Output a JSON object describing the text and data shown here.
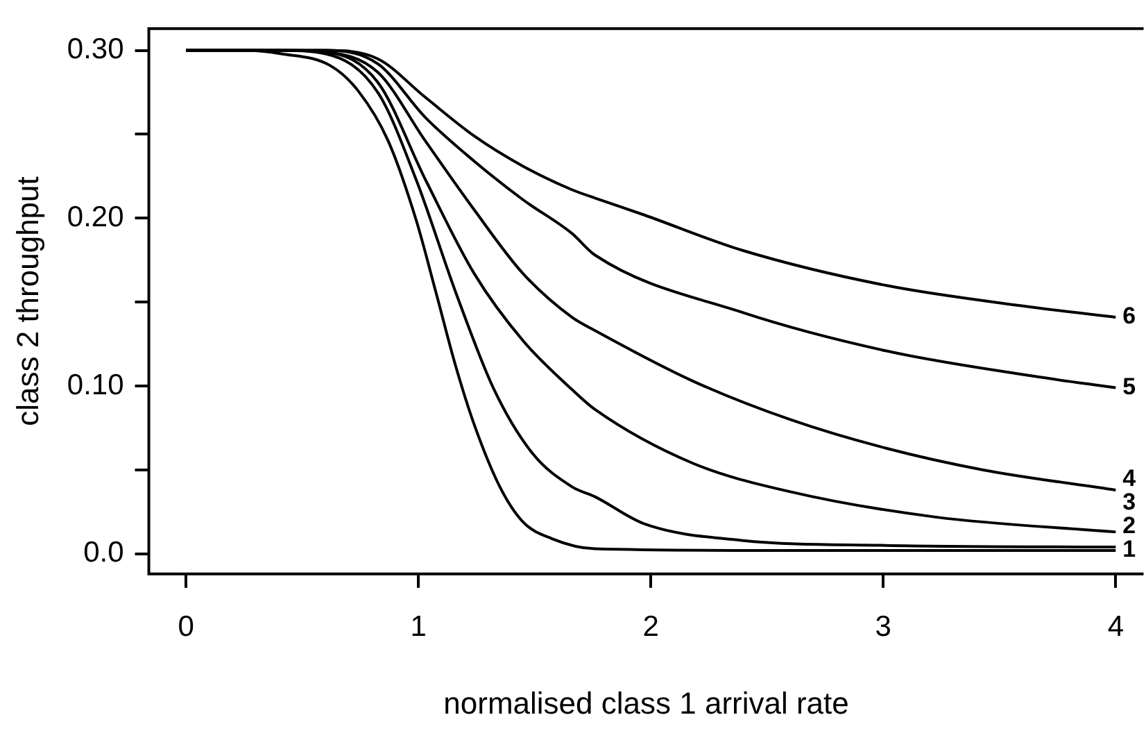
{
  "chart_data": {
    "type": "line",
    "xlabel": "normalised class 1 arrival rate",
    "ylabel": "class 2 throughput",
    "xlim": [
      -0.16,
      4.12
    ],
    "ylim": [
      -0.012,
      0.313
    ],
    "xticks": [
      0,
      1,
      2,
      3,
      4
    ],
    "yticks": [
      {
        "value": 0,
        "label": "0.0"
      },
      {
        "value": 0.05,
        "label": null
      },
      {
        "value": 0.1,
        "label": "0.10"
      },
      {
        "value": 0.15,
        "label": null
      },
      {
        "value": 0.2,
        "label": "0.20"
      },
      {
        "value": 0.25,
        "label": null
      },
      {
        "value": 0.3,
        "label": "0.30"
      }
    ],
    "grid": false,
    "legend": false,
    "marker": "none",
    "line_style": "solid",
    "series": [
      {
        "name": "1",
        "color": "#000000",
        "x": [
          0,
          0.25,
          0.41,
          0.62,
          0.74,
          0.87,
          0.99,
          1.075,
          1.16,
          1.24,
          1.35,
          1.45,
          1.575,
          1.76,
          2.5,
          4
        ],
        "values": [
          0.3,
          0.3,
          0.298,
          0.291,
          0.276,
          0.246,
          0.199,
          0.156,
          0.112,
          0.077,
          0.04,
          0.019,
          0.009,
          0.003,
          0.002,
          0.002
        ]
      },
      {
        "name": "2",
        "color": "#000000",
        "x": [
          0,
          0.4,
          0.6,
          0.825,
          0.99,
          1.16,
          1.325,
          1.49,
          1.66,
          1.76,
          1.97,
          2.39,
          3.01,
          4
        ],
        "values": [
          0.3,
          0.3,
          0.298,
          0.275,
          0.223,
          0.156,
          0.098,
          0.06,
          0.04,
          0.034,
          0.018,
          0.008,
          0.005,
          0.004
        ]
      },
      {
        "name": "3",
        "color": "#000000",
        "x": [
          0,
          0.4,
          0.6,
          0.825,
          1.03,
          1.24,
          1.45,
          1.66,
          1.76,
          2.18,
          2.6,
          3.22,
          4
        ],
        "values": [
          0.3,
          0.3,
          0.299,
          0.281,
          0.223,
          0.167,
          0.127,
          0.098,
          0.086,
          0.054,
          0.037,
          0.022,
          0.013
        ]
      },
      {
        "name": "4",
        "color": "#000000",
        "x": [
          0,
          0.4,
          0.6,
          0.825,
          1.03,
          1.24,
          1.45,
          1.66,
          1.76,
          2.18,
          2.6,
          3.01,
          3.43,
          4
        ],
        "values": [
          0.3,
          0.3,
          0.299,
          0.287,
          0.246,
          0.205,
          0.167,
          0.141,
          0.133,
          0.103,
          0.08,
          0.063,
          0.05,
          0.038
        ]
      },
      {
        "name": "5",
        "color": "#000000",
        "x": [
          0,
          0.4,
          0.6,
          0.825,
          1.03,
          1.24,
          1.45,
          1.66,
          1.76,
          2.39,
          3.01,
          3.64,
          4
        ],
        "values": [
          0.3,
          0.3,
          0.3,
          0.292,
          0.26,
          0.234,
          0.211,
          0.191,
          0.178,
          0.144,
          0.121,
          0.106,
          0.099
        ]
      },
      {
        "name": "6",
        "color": "#000000",
        "x": [
          0,
          0.4,
          0.6,
          0.825,
          1.03,
          1.24,
          1.45,
          1.66,
          1.76,
          1.97,
          2.39,
          3.01,
          3.64,
          4
        ],
        "values": [
          0.3,
          0.3,
          0.3,
          0.295,
          0.272,
          0.249,
          0.231,
          0.217,
          0.212,
          0.202,
          0.181,
          0.16,
          0.147,
          0.141
        ]
      }
    ]
  }
}
